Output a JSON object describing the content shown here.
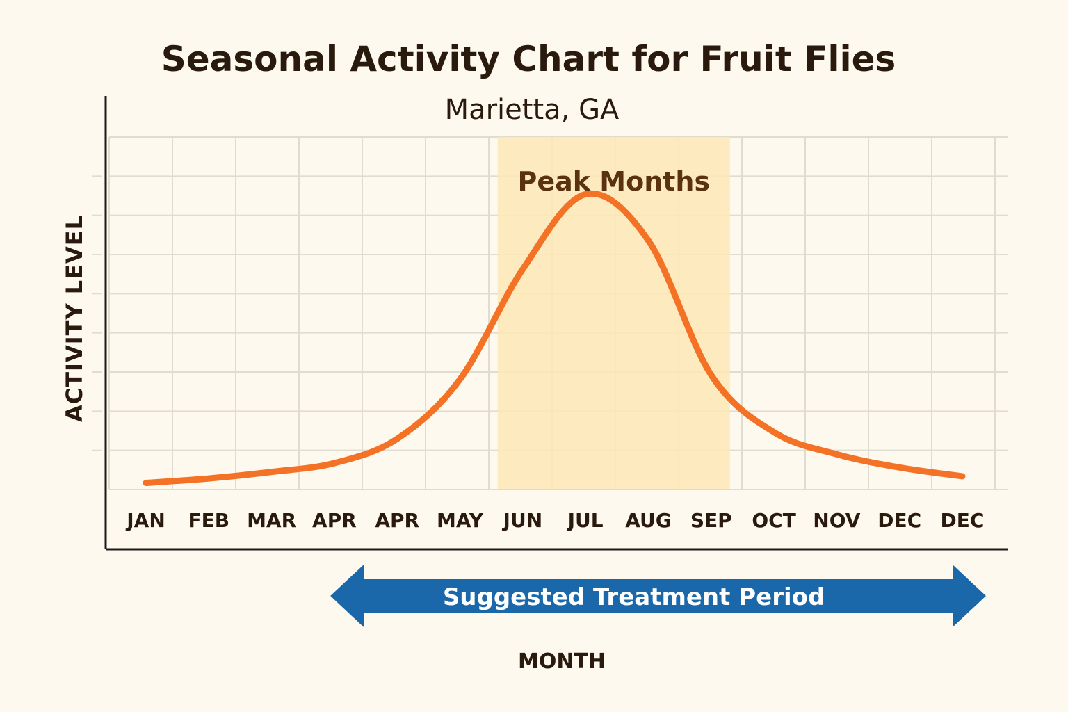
{
  "chart_data": {
    "type": "line",
    "title": "Seasonal Activity Chart for Fruit Flies",
    "subtitle": "Marietta, GA",
    "xlabel": "MONTH",
    "ylabel": "ACTIVITY LEVEL",
    "categories": [
      "JAN",
      "FEB",
      "MAR",
      "APR",
      "APR",
      "MAY",
      "JUN",
      "JUL",
      "AUG",
      "SEP",
      "OCT",
      "NOV",
      "DEC",
      "DEC"
    ],
    "series": [
      {
        "values": [
          0.3,
          0.5,
          0.8,
          1.2,
          2.3,
          5.0,
          10.0,
          13.4,
          11.3,
          5.2,
          2.6,
          1.6,
          1.0,
          0.6
        ]
      }
    ],
    "ylim": [
      0,
      16
    ],
    "grid": true,
    "peak_band": {
      "label": "Peak Months",
      "start": 5.6,
      "end": 9.3
    },
    "treatment_period": {
      "label": "Suggested Treatment Period",
      "start": 3.8,
      "end": 13.0
    },
    "colors": {
      "line": "#f47226",
      "peak_band": "#fde9b6",
      "arrow": "#1a68aa",
      "grid": "#e1dcd0",
      "axis": "#1a1a1a",
      "background": "#fdf9ee"
    }
  }
}
